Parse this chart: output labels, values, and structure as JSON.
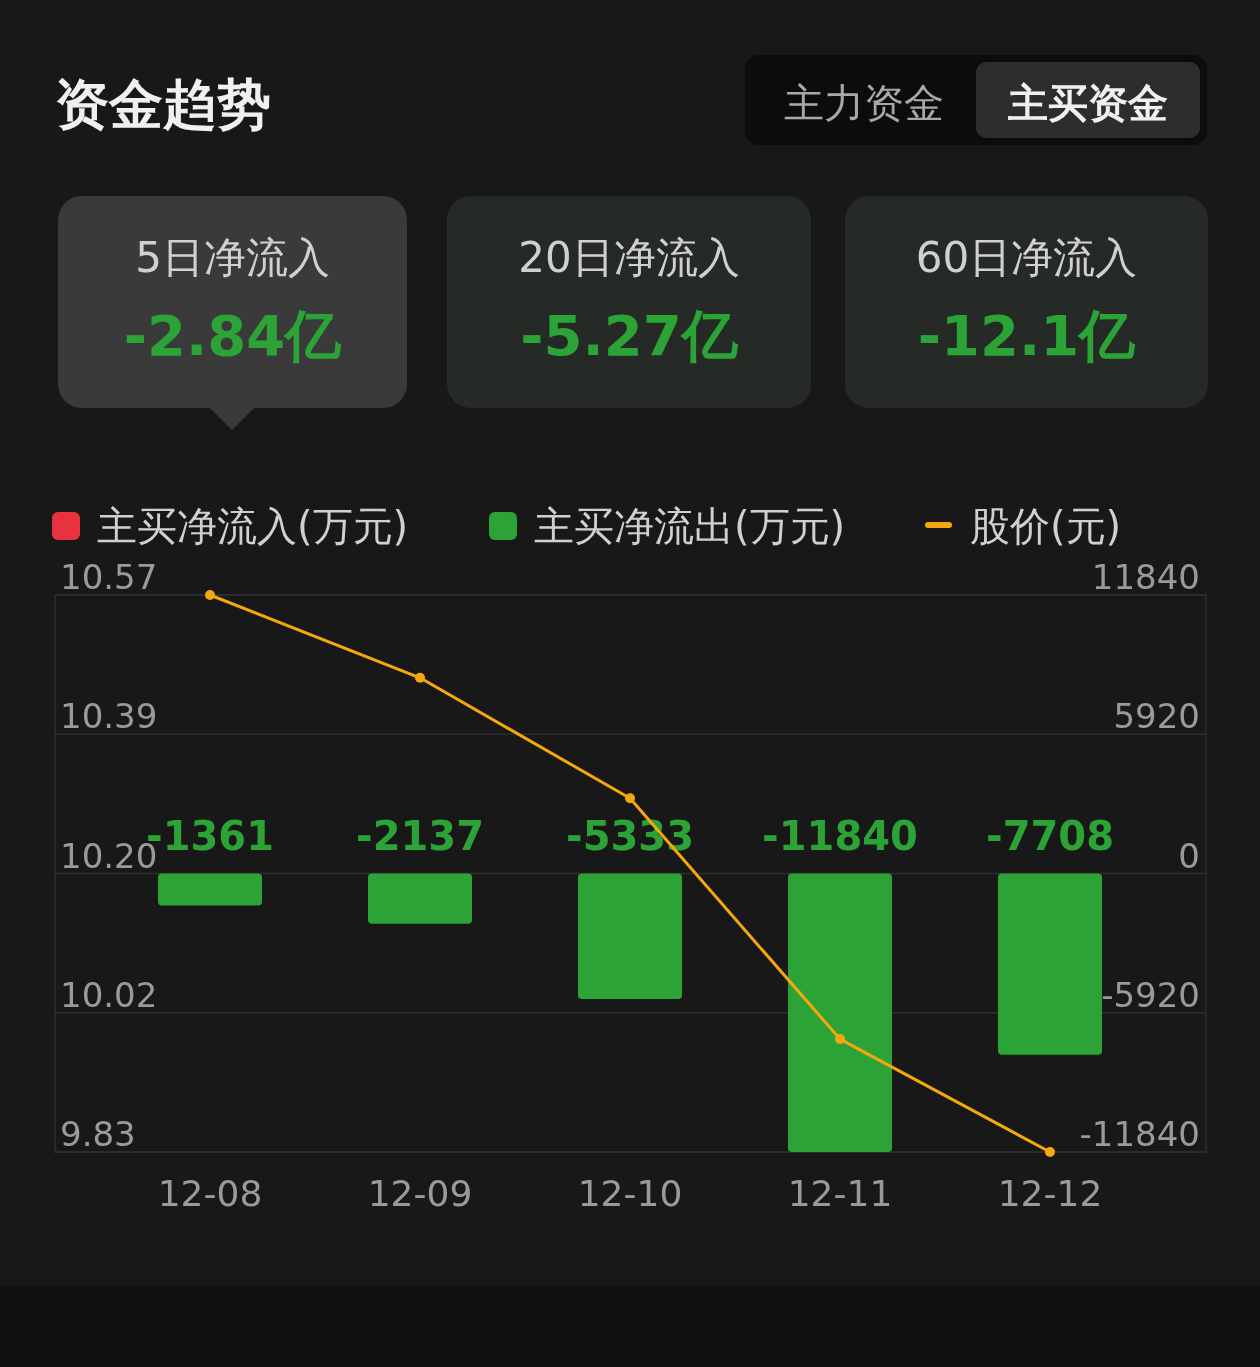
{
  "chart_data": {
    "type": "bar",
    "title": "资金趋势",
    "annotations": [
      "主力资金",
      "主买资金",
      "5日净流入",
      "-2.84亿",
      "20日净流入",
      "-5.27亿",
      "60日净流入",
      "-12.1亿"
    ],
    "categories": [
      "12-08",
      "12-09",
      "12-10",
      "12-11",
      "12-12"
    ],
    "series": [
      {
        "name": "主买净流入(万元)",
        "color": "#e8333f",
        "axis": "y2",
        "values": [
          null,
          null,
          null,
          null,
          null
        ]
      },
      {
        "name": "主买净流出(万元)",
        "color": "#2ca336",
        "axis": "y2",
        "values": [
          -1361,
          -2137,
          -5333,
          -11840,
          -7708
        ],
        "value_labels": [
          "-1361",
          "-2137",
          "-5333",
          "-11840",
          "-7708"
        ]
      },
      {
        "name": "股价(元)",
        "type": "line",
        "color": "#f5a70f",
        "marker": "circle",
        "values": [
          10.57,
          10.46,
          10.3,
          9.98,
          9.83
        ]
      }
    ],
    "ylim": [
      9.83,
      10.57
    ],
    "yticks": [
      {
        "value": 10.57,
        "label": "10.57"
      },
      {
        "value": 10.385,
        "label": "10.39"
      },
      {
        "value": 10.2,
        "label": "10.20"
      },
      {
        "value": 10.015,
        "label": "10.02"
      },
      {
        "value": 9.83,
        "label": "9.83"
      }
    ],
    "y2lim": [
      -11840,
      11840
    ],
    "y2ticks": [
      11840,
      5920,
      0,
      -5920,
      -11840
    ],
    "grid": true,
    "legend": "top"
  }
}
